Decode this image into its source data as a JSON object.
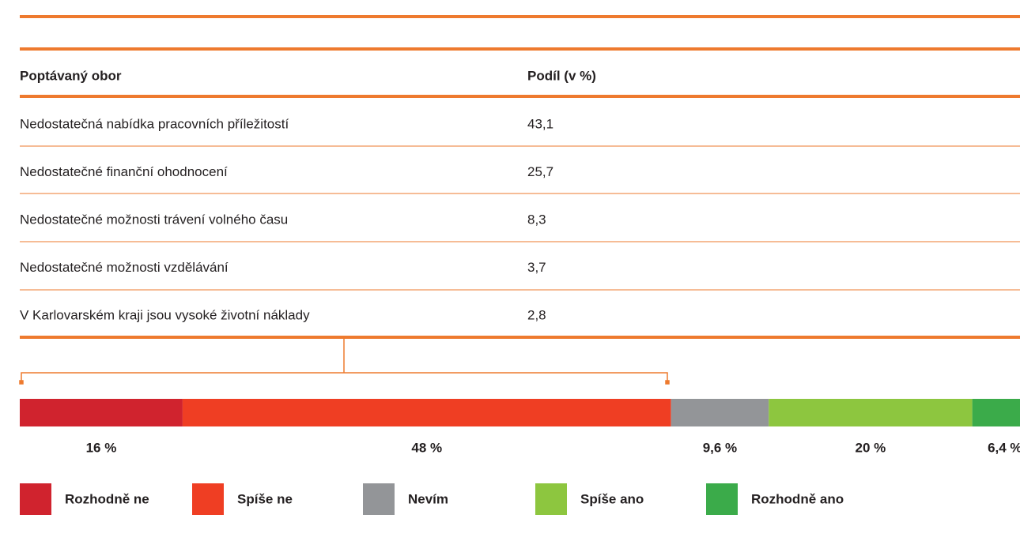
{
  "table": {
    "header": [
      "Poptávaný obor",
      "Podíl (v %)"
    ],
    "rows": [
      [
        "Nedostatečná nabídka pracovních příležitostí",
        "43,1"
      ],
      [
        "Nedostatečné finanční ohodnocení",
        "25,7"
      ],
      [
        "Nedostatečné možnosti trávení volného času",
        "8,3"
      ],
      [
        "Nedostatečné možnosti vzdělávání",
        "3,7"
      ],
      [
        "V Karlovarském kraji jsou vysoké životní náklady",
        "2,8"
      ]
    ]
  },
  "chart_data": {
    "type": "stacked_bar",
    "xlim": [
      0,
      100
    ],
    "series": [
      {
        "name": "Rozhodně ne",
        "color": "#d0232e",
        "values": [
          16
        ],
        "value_labels": [
          "16 %"
        ]
      },
      {
        "name": "Spíše ne",
        "color": "#ef3e23",
        "values": [
          48
        ],
        "value_labels": [
          "48 %"
        ]
      },
      {
        "name": "Nevím",
        "color": "#939598",
        "values": [
          9.6
        ],
        "value_labels": [
          "9,6 %"
        ]
      },
      {
        "name": "Spíše ano",
        "color": "#8dc63f",
        "values": [
          20
        ],
        "value_labels": [
          "20 %"
        ]
      },
      {
        "name": "Rozhodně ano",
        "color": "#3bab4a",
        "values": [
          6.4
        ],
        "value_labels": [
          "6,4 %"
        ]
      }
    ]
  }
}
